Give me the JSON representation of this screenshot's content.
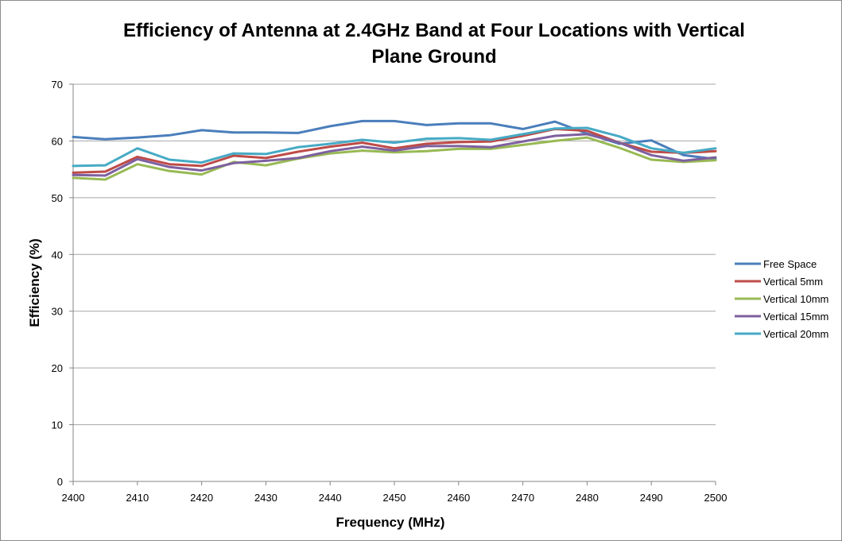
{
  "chart_data": {
    "type": "line",
    "title_lines": [
      "Efficiency of Antenna at 2.4GHz Band at Four Locations with Vertical",
      "Plane Ground"
    ],
    "xlabel": "Frequency  (MHz)",
    "ylabel": "Efficiency (%)",
    "xlim": [
      2400,
      2500
    ],
    "ylim": [
      0,
      70
    ],
    "x_ticks": [
      "2400",
      "2410",
      "2420",
      "2430",
      "2440",
      "2450",
      "2460",
      "2470",
      "2480",
      "2490",
      "2500"
    ],
    "y_ticks": [
      "0",
      "10",
      "20",
      "30",
      "40",
      "50",
      "60",
      "70"
    ],
    "grid": "horizontal",
    "legend_position": "right",
    "x": [
      2400,
      2405,
      2410,
      2415,
      2420,
      2425,
      2430,
      2435,
      2440,
      2445,
      2450,
      2455,
      2460,
      2465,
      2470,
      2475,
      2480,
      2485,
      2490,
      2495,
      2500
    ],
    "series": [
      {
        "name": "Free Space",
        "color": "#4a7ebb",
        "values": [
          60.7,
          60.3,
          60.6,
          61.0,
          61.9,
          61.5,
          61.5,
          61.4,
          62.6,
          63.5,
          63.5,
          62.8,
          63.1,
          63.1,
          62.1,
          63.4,
          61.3,
          59.5,
          60.1,
          57.5,
          56.8
        ]
      },
      {
        "name": "Vertical 5mm",
        "color": "#be4b48",
        "values": [
          54.4,
          54.6,
          57.2,
          55.9,
          55.6,
          57.4,
          57.0,
          58.1,
          59.0,
          59.7,
          58.7,
          59.5,
          59.8,
          59.9,
          60.9,
          62.1,
          61.8,
          59.7,
          58.1,
          57.9,
          58.2
        ]
      },
      {
        "name": "Vertical 10mm",
        "color": "#98b954",
        "values": [
          53.5,
          53.2,
          55.9,
          54.7,
          54.1,
          56.3,
          55.7,
          56.9,
          57.8,
          58.3,
          58.0,
          58.2,
          58.6,
          58.6,
          59.3,
          60.0,
          60.6,
          58.8,
          56.7,
          56.3,
          56.6
        ]
      },
      {
        "name": "Vertical 15mm",
        "color": "#7d60a0",
        "values": [
          54.0,
          53.9,
          56.8,
          55.4,
          54.8,
          56.1,
          56.5,
          57.0,
          58.2,
          59.0,
          58.3,
          59.1,
          59.1,
          58.9,
          59.9,
          60.9,
          61.2,
          59.7,
          57.5,
          56.5,
          57.1
        ]
      },
      {
        "name": "Vertical 20mm",
        "color": "#46aac5",
        "values": [
          55.6,
          55.7,
          58.7,
          56.7,
          56.2,
          57.8,
          57.7,
          58.9,
          59.5,
          60.2,
          59.7,
          60.4,
          60.5,
          60.2,
          61.2,
          62.2,
          62.3,
          60.8,
          58.7,
          57.9,
          58.7
        ]
      }
    ]
  }
}
